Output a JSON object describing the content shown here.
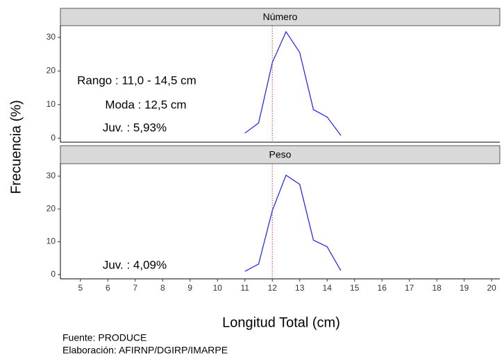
{
  "chart_data": [
    {
      "type": "line",
      "title": "Número",
      "x": [
        11,
        11.5,
        12,
        12.5,
        13,
        13.5,
        14,
        14.5
      ],
      "values": [
        1.5,
        4.5,
        22.5,
        31.7,
        25.5,
        8.5,
        6.3,
        0.8
      ],
      "color": "#1a1aff",
      "vline": 12,
      "vline_color": "#e03030",
      "xlim": [
        4.27,
        20.3
      ],
      "ylim": [
        -1.2,
        33.5
      ],
      "yticks": [
        0,
        10,
        20,
        30
      ],
      "annotations": [
        "Rango : 11,0 - 14,5 cm",
        "Moda : 12,5 cm",
        "Juv. : 5,93%"
      ]
    },
    {
      "type": "line",
      "title": "Peso",
      "x": [
        11,
        11.5,
        12,
        12.5,
        13,
        13.5,
        14,
        14.5
      ],
      "values": [
        1.0,
        3.2,
        19.5,
        30.3,
        27.5,
        10.5,
        8.5,
        1.2
      ],
      "color": "#1a1aff",
      "vline": 12,
      "vline_color": "#e03030",
      "xlim": [
        4.27,
        20.3
      ],
      "ylim": [
        -1.3,
        33.8
      ],
      "yticks": [
        0,
        10,
        20,
        30
      ],
      "xticks": [
        5,
        6,
        7,
        8,
        9,
        10,
        11,
        12,
        13,
        14,
        15,
        16,
        17,
        18,
        19,
        20
      ],
      "annotations": [
        "Juv. : 4,09%"
      ]
    }
  ],
  "xlabel": "Longitud Total (cm)",
  "ylabel": "Frecuencia (%)",
  "notes": [
    "Fuente: PRODUCE",
    "Elaboración: AFIRNP/DGIRP/IMARPE"
  ]
}
